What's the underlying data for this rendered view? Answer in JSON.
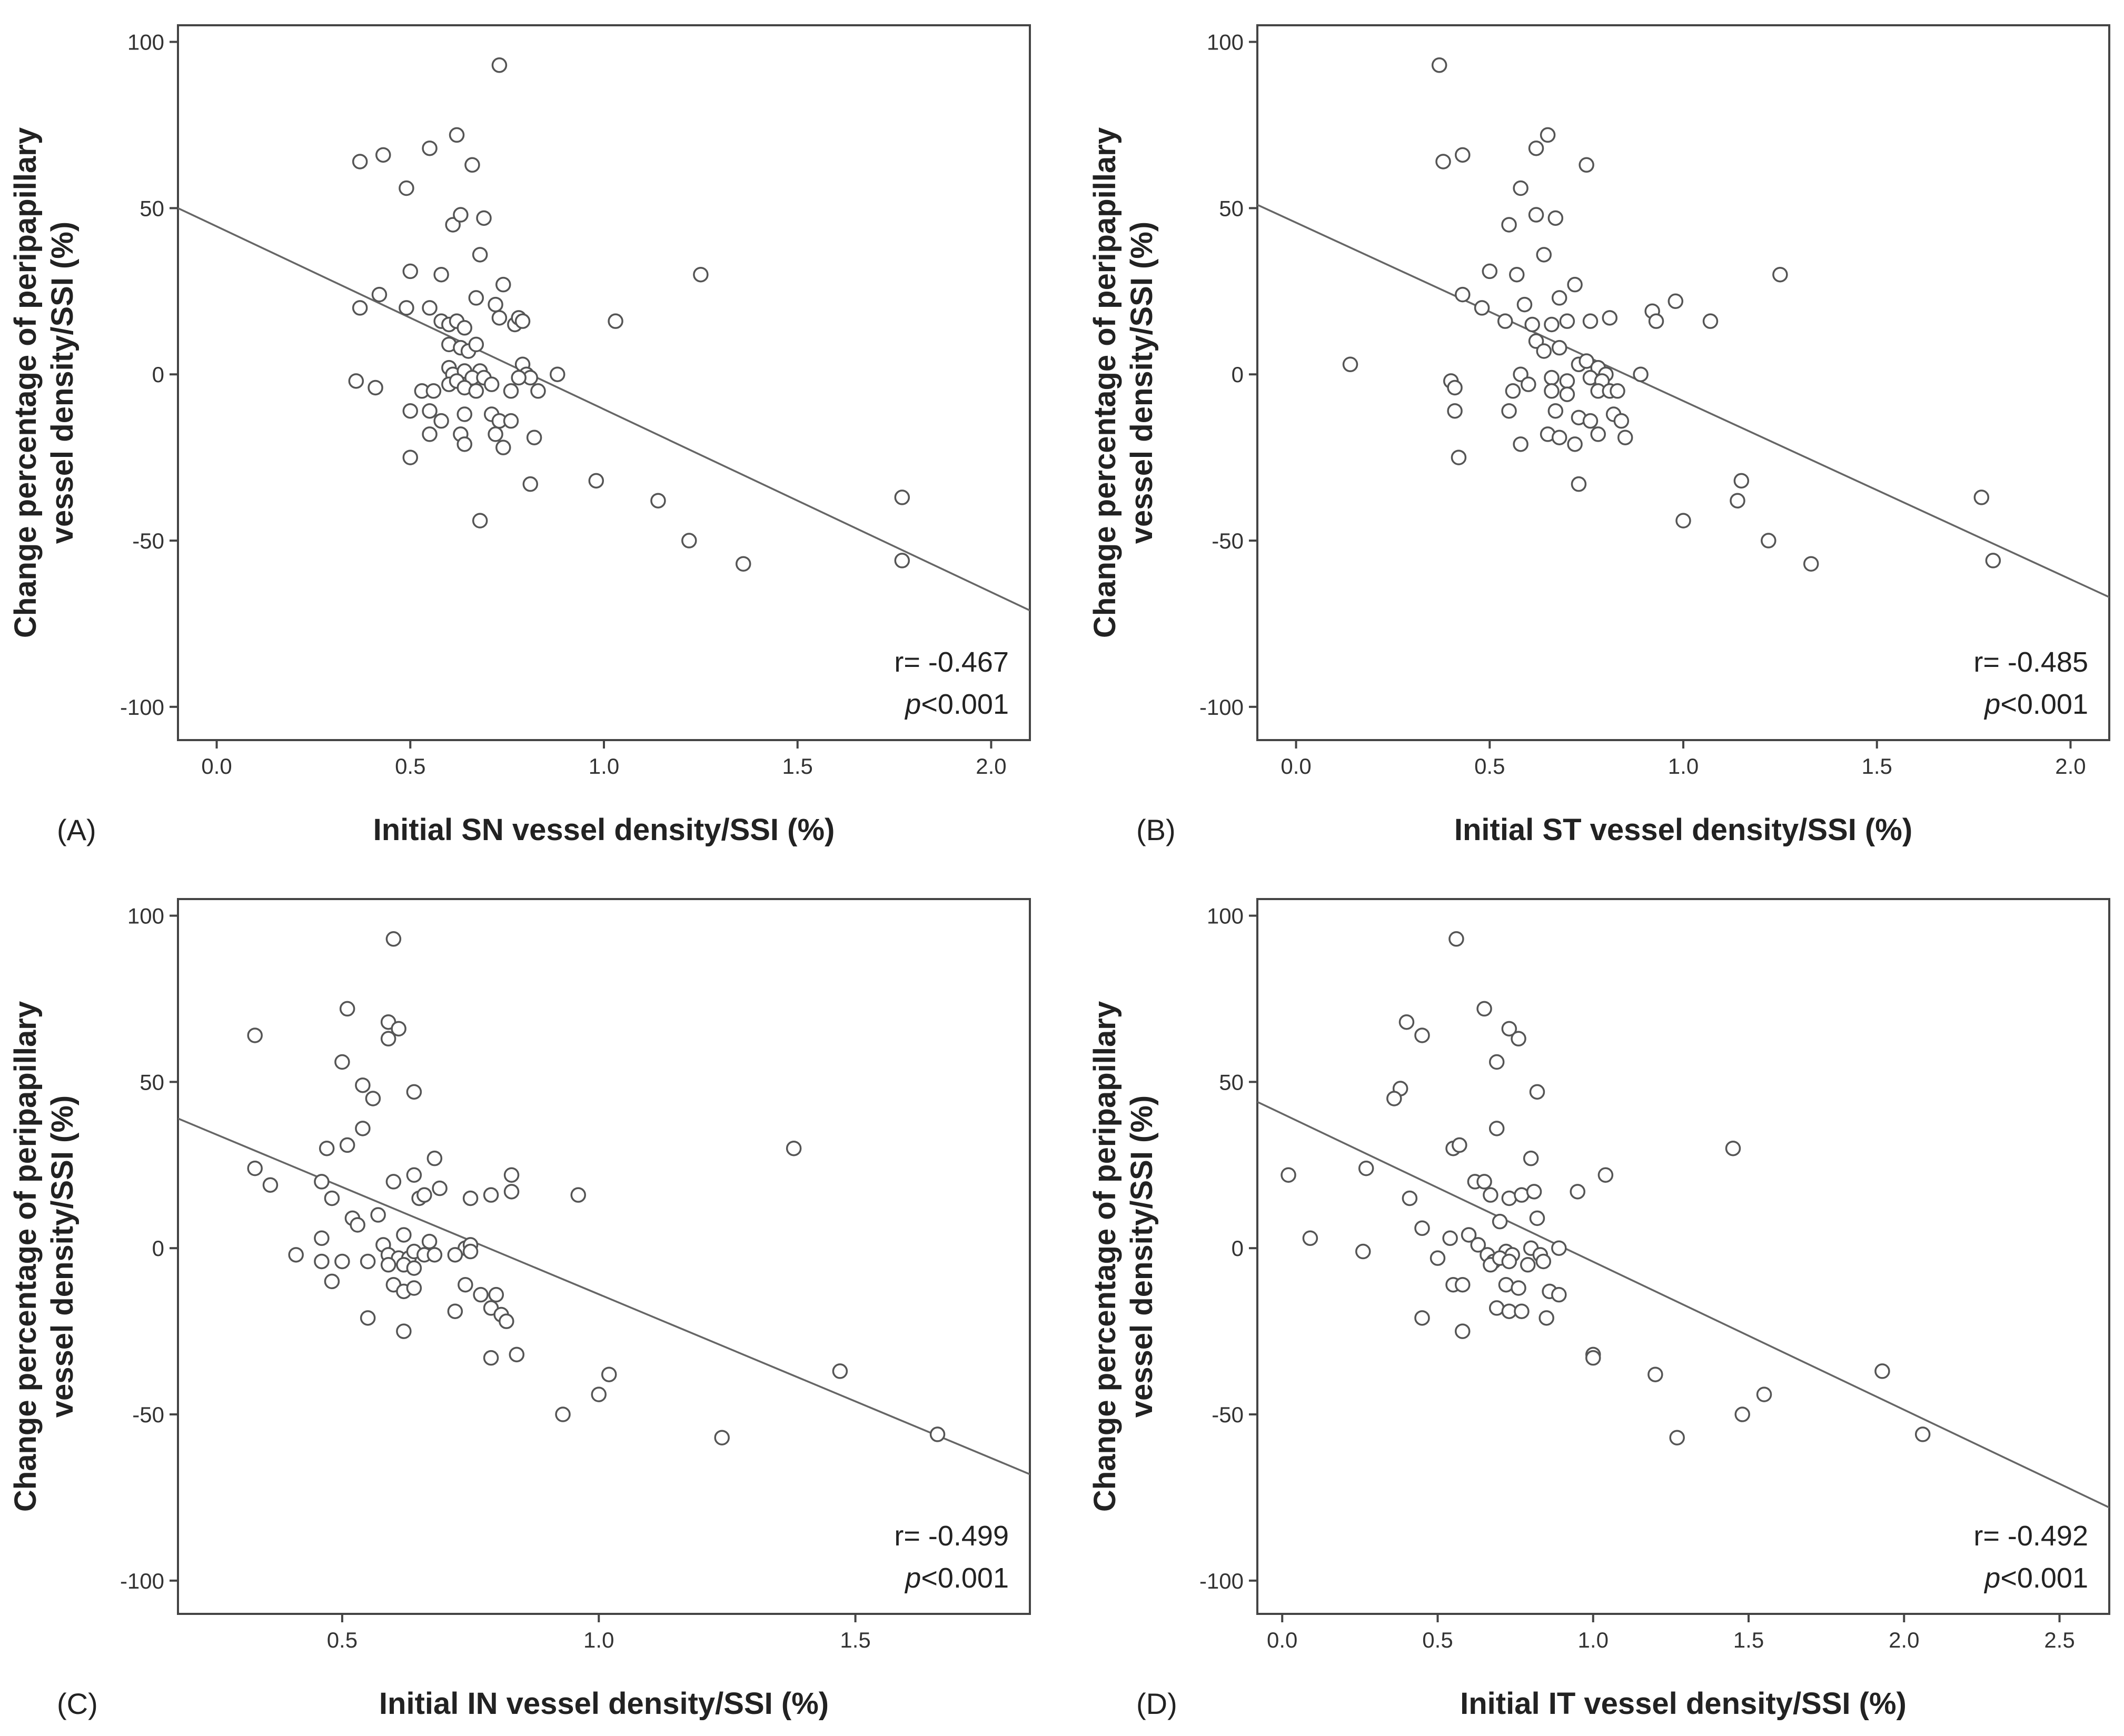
{
  "colors": {
    "frame": "#444444",
    "marker": "#555555",
    "fit_line": "#666666",
    "text": "#222222"
  },
  "chart_data": [
    {
      "type": "scatter",
      "panel_label": "(A)",
      "xlabel": "Initial SN vessel density/SSI (%)",
      "ylabel_line1": "Change percentage of peripapillary",
      "ylabel_line2": "vessel density/SSI (%)",
      "xlim": [
        -0.1,
        2.1
      ],
      "ylim": [
        -110,
        105
      ],
      "xticks": [
        0.0,
        0.5,
        1.0,
        1.5,
        2.0
      ],
      "xtick_labels": [
        "0.0",
        "0.5",
        "1.0",
        "1.5",
        "2.0"
      ],
      "yticks": [
        100,
        50,
        0,
        -50,
        -100
      ],
      "ytick_labels": [
        "100",
        "50",
        "0",
        "-50",
        "-100"
      ],
      "r_text": "r= -0.467",
      "p_italic": "p",
      "p_rest": "<0.001",
      "fit_line": [
        [
          -0.1,
          50
        ],
        [
          2.1,
          -71
        ]
      ],
      "points": [
        [
          0.37,
          64
        ],
        [
          0.43,
          66
        ],
        [
          0.55,
          68
        ],
        [
          0.62,
          72
        ],
        [
          0.73,
          93
        ],
        [
          0.49,
          56
        ],
        [
          0.66,
          63
        ],
        [
          0.37,
          20
        ],
        [
          0.42,
          24
        ],
        [
          0.49,
          20
        ],
        [
          0.5,
          31
        ],
        [
          0.55,
          20
        ],
        [
          0.58,
          30
        ],
        [
          0.58,
          16
        ],
        [
          0.6,
          15
        ],
        [
          0.61,
          45
        ],
        [
          0.62,
          16
        ],
        [
          0.63,
          48
        ],
        [
          0.64,
          14
        ],
        [
          0.67,
          23
        ],
        [
          0.68,
          36
        ],
        [
          0.69,
          47
        ],
        [
          0.72,
          21
        ],
        [
          0.74,
          27
        ],
        [
          0.73,
          17
        ],
        [
          0.77,
          15
        ],
        [
          0.78,
          17
        ],
        [
          0.79,
          16
        ],
        [
          0.6,
          9
        ],
        [
          0.63,
          8
        ],
        [
          0.65,
          7
        ],
        [
          0.67,
          9
        ],
        [
          0.68,
          1
        ],
        [
          0.6,
          2
        ],
        [
          0.61,
          0
        ],
        [
          0.64,
          1
        ],
        [
          0.66,
          -1
        ],
        [
          0.69,
          -1
        ],
        [
          0.79,
          3
        ],
        [
          0.8,
          0
        ],
        [
          0.81,
          -1
        ],
        [
          0.78,
          -1
        ],
        [
          0.88,
          0
        ],
        [
          0.36,
          -2
        ],
        [
          0.41,
          -4
        ],
        [
          0.53,
          -5
        ],
        [
          0.56,
          -5
        ],
        [
          0.6,
          -3
        ],
        [
          0.62,
          -2
        ],
        [
          0.64,
          -4
        ],
        [
          0.67,
          -5
        ],
        [
          0.71,
          -3
        ],
        [
          0.76,
          -5
        ],
        [
          0.83,
          -5
        ],
        [
          0.5,
          -11
        ],
        [
          0.55,
          -11
        ],
        [
          0.58,
          -14
        ],
        [
          0.64,
          -12
        ],
        [
          0.71,
          -12
        ],
        [
          0.73,
          -14
        ],
        [
          0.76,
          -14
        ],
        [
          0.72,
          -18
        ],
        [
          0.63,
          -18
        ],
        [
          0.64,
          -21
        ],
        [
          0.55,
          -18
        ],
        [
          0.5,
          -25
        ],
        [
          0.74,
          -22
        ],
        [
          0.82,
          -19
        ],
        [
          0.81,
          -33
        ],
        [
          0.68,
          -44
        ],
        [
          0.98,
          -32
        ],
        [
          1.03,
          16
        ],
        [
          1.14,
          -38
        ],
        [
          1.22,
          -50
        ],
        [
          1.25,
          30
        ],
        [
          1.36,
          -57
        ],
        [
          1.77,
          -37
        ],
        [
          1.77,
          -56
        ]
      ]
    },
    {
      "type": "scatter",
      "panel_label": "(B)",
      "xlabel": "Initial ST vessel density/SSI (%)",
      "ylabel_line1": "Change percentage of peripapillary",
      "ylabel_line2": "vessel density/SSI (%)",
      "xlim": [
        -0.1,
        2.1
      ],
      "ylim": [
        -110,
        105
      ],
      "xticks": [
        0.0,
        0.5,
        1.0,
        1.5,
        2.0
      ],
      "xtick_labels": [
        "0.0",
        "0.5",
        "1.0",
        "1.5",
        "2.0"
      ],
      "yticks": [
        100,
        50,
        0,
        -50,
        -100
      ],
      "ytick_labels": [
        "100",
        "50",
        "0",
        "-50",
        "-100"
      ],
      "r_text": "r= -0.485",
      "p_italic": "p",
      "p_rest": "<0.001",
      "fit_line": [
        [
          -0.1,
          51
        ],
        [
          2.1,
          -67
        ]
      ],
      "points": [
        [
          0.37,
          93
        ],
        [
          0.38,
          64
        ],
        [
          0.43,
          66
        ],
        [
          0.62,
          68
        ],
        [
          0.65,
          72
        ],
        [
          0.75,
          63
        ],
        [
          0.58,
          56
        ],
        [
          0.55,
          45
        ],
        [
          0.62,
          48
        ],
        [
          0.67,
          47
        ],
        [
          0.64,
          36
        ],
        [
          0.5,
          31
        ],
        [
          0.57,
          30
        ],
        [
          0.43,
          24
        ],
        [
          0.48,
          20
        ],
        [
          0.54,
          16
        ],
        [
          0.59,
          21
        ],
        [
          0.61,
          15
        ],
        [
          0.66,
          15
        ],
        [
          0.68,
          23
        ],
        [
          0.72,
          27
        ],
        [
          0.7,
          16
        ],
        [
          0.76,
          16
        ],
        [
          0.81,
          17
        ],
        [
          0.92,
          19
        ],
        [
          0.93,
          16
        ],
        [
          0.98,
          22
        ],
        [
          1.07,
          16
        ],
        [
          1.25,
          30
        ],
        [
          0.14,
          3
        ],
        [
          0.62,
          10
        ],
        [
          0.64,
          7
        ],
        [
          0.68,
          8
        ],
        [
          0.73,
          3
        ],
        [
          0.75,
          4
        ],
        [
          0.78,
          2
        ],
        [
          0.8,
          0
        ],
        [
          0.89,
          0
        ],
        [
          0.58,
          0
        ],
        [
          0.66,
          -1
        ],
        [
          0.7,
          -2
        ],
        [
          0.76,
          -1
        ],
        [
          0.79,
          -2
        ],
        [
          0.4,
          -2
        ],
        [
          0.41,
          -4
        ],
        [
          0.56,
          -5
        ],
        [
          0.6,
          -3
        ],
        [
          0.66,
          -5
        ],
        [
          0.7,
          -6
        ],
        [
          0.78,
          -5
        ],
        [
          0.81,
          -5
        ],
        [
          0.83,
          -5
        ],
        [
          0.41,
          -11
        ],
        [
          0.55,
          -11
        ],
        [
          0.67,
          -11
        ],
        [
          0.73,
          -13
        ],
        [
          0.76,
          -14
        ],
        [
          0.82,
          -12
        ],
        [
          0.84,
          -14
        ],
        [
          0.65,
          -18
        ],
        [
          0.68,
          -19
        ],
        [
          0.72,
          -21
        ],
        [
          0.78,
          -18
        ],
        [
          0.85,
          -19
        ],
        [
          0.58,
          -21
        ],
        [
          0.42,
          -25
        ],
        [
          0.73,
          -33
        ],
        [
          1.0,
          -44
        ],
        [
          1.14,
          -38
        ],
        [
          1.15,
          -32
        ],
        [
          1.22,
          -50
        ],
        [
          1.33,
          -57
        ],
        [
          1.77,
          -37
        ],
        [
          1.8,
          -56
        ]
      ]
    },
    {
      "type": "scatter",
      "panel_label": "(C)",
      "xlabel": "Initial IN vessel density/SSI (%)",
      "ylabel_line1": "Change percentage of peripapillary",
      "ylabel_line2": "vessel density/SSI (%)",
      "xlim": [
        0.18,
        1.84
      ],
      "ylim": [
        -110,
        105
      ],
      "xticks": [
        0.5,
        1.0,
        1.5
      ],
      "xtick_labels": [
        "0.5",
        "1.0",
        "1.5"
      ],
      "yticks": [
        100,
        50,
        0,
        -50,
        -100
      ],
      "ytick_labels": [
        "100",
        "50",
        "0",
        "-50",
        "-100"
      ],
      "r_text": "r= -0.499",
      "p_italic": "p",
      "p_rest": "<0.001",
      "fit_line": [
        [
          0.18,
          39
        ],
        [
          1.84,
          -68
        ]
      ],
      "points": [
        [
          0.33,
          64
        ],
        [
          0.51,
          72
        ],
        [
          0.59,
          68
        ],
        [
          0.6,
          93
        ],
        [
          0.61,
          66
        ],
        [
          0.59,
          63
        ],
        [
          0.5,
          56
        ],
        [
          0.54,
          49
        ],
        [
          0.56,
          45
        ],
        [
          0.64,
          47
        ],
        [
          0.54,
          36
        ],
        [
          0.47,
          30
        ],
        [
          0.51,
          31
        ],
        [
          0.33,
          24
        ],
        [
          0.36,
          19
        ],
        [
          0.46,
          20
        ],
        [
          0.48,
          15
        ],
        [
          0.57,
          10
        ],
        [
          0.6,
          20
        ],
        [
          0.64,
          22
        ],
        [
          0.65,
          15
        ],
        [
          0.66,
          16
        ],
        [
          0.68,
          27
        ],
        [
          0.69,
          18
        ],
        [
          0.75,
          15
        ],
        [
          0.79,
          16
        ],
        [
          0.83,
          22
        ],
        [
          0.83,
          17
        ],
        [
          0.96,
          16
        ],
        [
          1.38,
          30
        ],
        [
          0.52,
          9
        ],
        [
          0.53,
          7
        ],
        [
          0.62,
          4
        ],
        [
          0.67,
          2
        ],
        [
          0.74,
          0
        ],
        [
          0.75,
          1
        ],
        [
          0.46,
          3
        ],
        [
          0.58,
          1
        ],
        [
          0.59,
          -2
        ],
        [
          0.61,
          -3
        ],
        [
          0.63,
          -3
        ],
        [
          0.64,
          -1
        ],
        [
          0.66,
          -2
        ],
        [
          0.68,
          -2
        ],
        [
          0.72,
          -2
        ],
        [
          0.75,
          -1
        ],
        [
          0.41,
          -2
        ],
        [
          0.46,
          -4
        ],
        [
          0.5,
          -4
        ],
        [
          0.55,
          -4
        ],
        [
          0.59,
          -5
        ],
        [
          0.62,
          -5
        ],
        [
          0.64,
          -6
        ],
        [
          0.48,
          -10
        ],
        [
          0.6,
          -11
        ],
        [
          0.62,
          -13
        ],
        [
          0.64,
          -12
        ],
        [
          0.74,
          -11
        ],
        [
          0.77,
          -14
        ],
        [
          0.8,
          -14
        ],
        [
          0.55,
          -21
        ],
        [
          0.72,
          -19
        ],
        [
          0.79,
          -18
        ],
        [
          0.81,
          -20
        ],
        [
          0.82,
          -22
        ],
        [
          0.62,
          -25
        ],
        [
          0.79,
          -33
        ],
        [
          0.84,
          -32
        ],
        [
          0.93,
          -50
        ],
        [
          1.0,
          -44
        ],
        [
          1.02,
          -38
        ],
        [
          1.24,
          -57
        ],
        [
          1.47,
          -37
        ],
        [
          1.66,
          -56
        ]
      ]
    },
    {
      "type": "scatter",
      "panel_label": "(D)",
      "xlabel": "Initial IT vessel density/SSI (%)",
      "ylabel_line1": "Change percentage of peripapillary",
      "ylabel_line2": "vessel density/SSI (%)",
      "xlim": [
        -0.08,
        2.66
      ],
      "ylim": [
        -110,
        105
      ],
      "xticks": [
        0.0,
        0.5,
        1.0,
        1.5,
        2.0,
        2.5
      ],
      "xtick_labels": [
        "0.0",
        "0.5",
        "1.0",
        "1.5",
        "2.0",
        "2.5"
      ],
      "yticks": [
        100,
        50,
        0,
        -50,
        -100
      ],
      "ytick_labels": [
        "100",
        "50",
        "0",
        "-50",
        "-100"
      ],
      "r_text": "r= -0.492",
      "p_italic": "p",
      "p_rest": "<0.001",
      "fit_line": [
        [
          -0.08,
          44
        ],
        [
          2.66,
          -78
        ]
      ],
      "points": [
        [
          0.56,
          93
        ],
        [
          0.4,
          68
        ],
        [
          0.65,
          72
        ],
        [
          0.45,
          64
        ],
        [
          0.73,
          66
        ],
        [
          0.76,
          63
        ],
        [
          0.69,
          56
        ],
        [
          0.38,
          48
        ],
        [
          0.36,
          45
        ],
        [
          0.82,
          47
        ],
        [
          0.55,
          30
        ],
        [
          0.57,
          31
        ],
        [
          0.69,
          36
        ],
        [
          0.02,
          22
        ],
        [
          0.27,
          24
        ],
        [
          0.41,
          15
        ],
        [
          0.62,
          20
        ],
        [
          0.65,
          20
        ],
        [
          0.67,
          16
        ],
        [
          0.73,
          15
        ],
        [
          0.77,
          16
        ],
        [
          0.8,
          27
        ],
        [
          0.81,
          17
        ],
        [
          0.95,
          17
        ],
        [
          1.04,
          22
        ],
        [
          1.45,
          30
        ],
        [
          0.09,
          3
        ],
        [
          0.45,
          6
        ],
        [
          0.5,
          -3
        ],
        [
          0.54,
          3
        ],
        [
          0.6,
          4
        ],
        [
          0.63,
          1
        ],
        [
          0.66,
          -2
        ],
        [
          0.68,
          -4
        ],
        [
          0.7,
          8
        ],
        [
          0.72,
          -1
        ],
        [
          0.74,
          -2
        ],
        [
          0.8,
          0
        ],
        [
          0.83,
          -2
        ],
        [
          0.84,
          -4
        ],
        [
          0.26,
          -1
        ],
        [
          0.89,
          0
        ],
        [
          0.67,
          -5
        ],
        [
          0.7,
          -3
        ],
        [
          0.73,
          -4
        ],
        [
          0.79,
          -5
        ],
        [
          0.55,
          -11
        ],
        [
          0.58,
          -11
        ],
        [
          0.72,
          -11
        ],
        [
          0.76,
          -12
        ],
        [
          0.82,
          9
        ],
        [
          0.86,
          -13
        ],
        [
          0.89,
          -14
        ],
        [
          0.45,
          -21
        ],
        [
          0.69,
          -18
        ],
        [
          0.73,
          -19
        ],
        [
          0.77,
          -19
        ],
        [
          0.85,
          -21
        ],
        [
          0.58,
          -25
        ],
        [
          1.0,
          -32
        ],
        [
          1.0,
          -33
        ],
        [
          1.2,
          -38
        ],
        [
          1.27,
          -57
        ],
        [
          1.48,
          -50
        ],
        [
          1.55,
          -44
        ],
        [
          1.93,
          -37
        ],
        [
          2.06,
          -56
        ]
      ]
    }
  ]
}
